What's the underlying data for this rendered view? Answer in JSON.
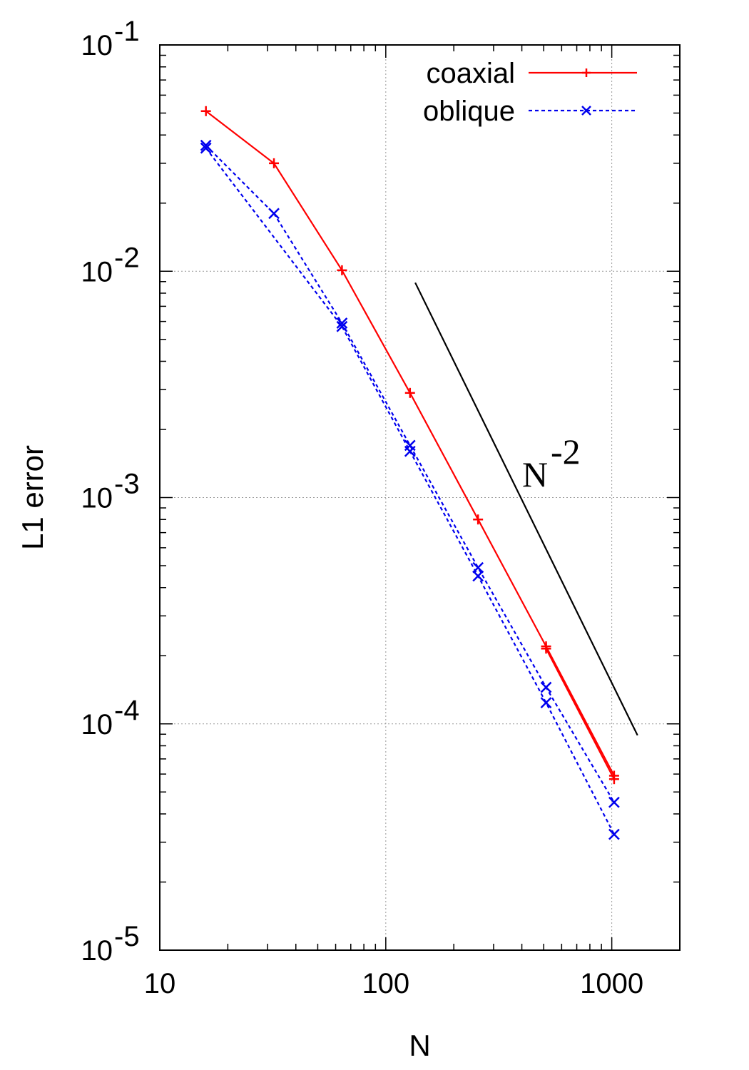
{
  "chart_data": {
    "type": "line",
    "title": "",
    "xlabel": "N",
    "ylabel": "L1 error",
    "x_scale": "log",
    "y_scale": "log",
    "xlim": [
      10,
      2000
    ],
    "ylim": [
      1e-05,
      0.1
    ],
    "x_ticks": [
      {
        "value": 10,
        "label": "10"
      },
      {
        "value": 100,
        "label": "100"
      },
      {
        "value": 1000,
        "label": "1000"
      }
    ],
    "y_ticks": [
      {
        "value": 1e-05,
        "base": "10",
        "exp": "-5"
      },
      {
        "value": 0.0001,
        "base": "10",
        "exp": "-4"
      },
      {
        "value": 0.001,
        "base": "10",
        "exp": "-3"
      },
      {
        "value": 0.01,
        "base": "10",
        "exp": "-2"
      },
      {
        "value": 0.1,
        "base": "10",
        "exp": "-1"
      }
    ],
    "grid": true,
    "grid_x": [
      100,
      1000
    ],
    "grid_y": [
      0.0001,
      0.001,
      0.01
    ],
    "legend_position": "top-right",
    "series": [
      {
        "name": "coaxial",
        "color": "#ff0000",
        "line_style": "solid",
        "marker": "plus",
        "lines": [
          {
            "x": [
              16,
              32,
              64,
              128,
              256,
              512,
              1024
            ],
            "y": [
              0.051,
              0.03,
              0.0101,
              0.0029,
              0.0008,
              0.00022,
              5.9e-05
            ]
          },
          {
            "x": [
              512,
              1024
            ],
            "y": [
              0.000215,
              5.7e-05
            ]
          }
        ]
      },
      {
        "name": "oblique",
        "color": "#0000ee",
        "line_style": "dotted",
        "marker": "cross",
        "lines": [
          {
            "x": [
              16,
              32,
              64,
              128,
              256,
              512,
              1024
            ],
            "y": [
              0.036,
              0.018,
              0.0059,
              0.0017,
              0.00049,
              0.000145,
              4.5e-05
            ]
          },
          {
            "x": [
              16,
              64,
              128,
              256,
              512,
              1024
            ],
            "y": [
              0.035,
              0.0057,
              0.0016,
              0.00045,
              0.000124,
              3.25e-05
            ]
          }
        ]
      }
    ],
    "reference_line": {
      "label_base": "N",
      "label_exp": "-2",
      "color": "#000000",
      "x": [
        135,
        1300
      ],
      "y": [
        0.0089,
        8.9e-05
      ]
    }
  }
}
